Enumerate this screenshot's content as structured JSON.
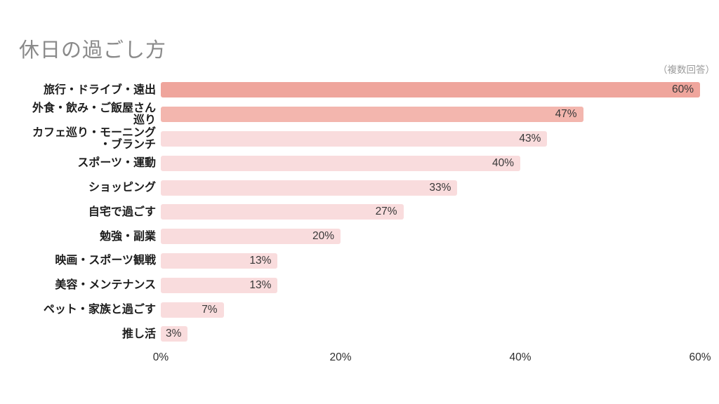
{
  "header": {
    "title": "休日の過ごし方",
    "note": "（複数回答）"
  },
  "colors": {
    "bar_strong": "#EFA59C",
    "bar_medium": "#F3B6AE",
    "bar_light": "#F9DCDD",
    "title_text": "#8A8A8A",
    "note_text": "#9B9B9B",
    "category_text": "#1C1C1C",
    "value_text": "#383838"
  },
  "chart_data": {
    "type": "bar",
    "orientation": "horizontal",
    "title": "休日の過ごし方",
    "subtitle": "（複数回答）",
    "categories": [
      "旅行・ドライブ・遠出",
      "外食・飲み・ご飯屋さん\n巡り",
      "カフェ巡り・モーニング\n・ブランチ",
      "スポーツ・運動",
      "ショッピング",
      "自宅で過ごす",
      "勉強・副業",
      "映画・スポーツ観戦",
      "美容・メンテナンス",
      "ペット・家族と過ごす",
      "推し活"
    ],
    "values": [
      60,
      47,
      43,
      40,
      33,
      27,
      20,
      13,
      13,
      7,
      3
    ],
    "value_labels": [
      "60%",
      "47%",
      "43%",
      "40%",
      "33%",
      "27%",
      "20%",
      "13%",
      "13%",
      "7%",
      "3%"
    ],
    "bar_colors": [
      "#EFA59C",
      "#F3B6AE",
      "#F9DCDD",
      "#F9DCDD",
      "#F9DCDD",
      "#F9DCDD",
      "#F9DCDD",
      "#F9DCDD",
      "#F9DCDD",
      "#F9DCDD",
      "#F9DCDD"
    ],
    "xlabel": "",
    "ylabel": "",
    "xlim": [
      0,
      60
    ],
    "x_ticks": [
      {
        "value": 0,
        "label": "0%"
      },
      {
        "value": 20,
        "label": "20%"
      },
      {
        "value": 40,
        "label": "40%"
      },
      {
        "value": 60,
        "label": "60%"
      }
    ],
    "grid": false,
    "legend": null,
    "value_label_position": "inside-end"
  }
}
